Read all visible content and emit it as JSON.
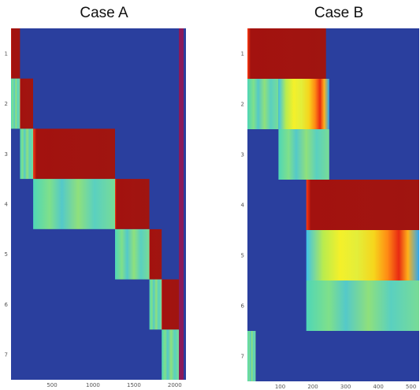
{
  "chart_data": [
    {
      "type": "heatmap",
      "title": "Case A",
      "x_ticks": [
        500,
        1000,
        1500,
        2000
      ],
      "xlim": [
        0,
        2050
      ],
      "y_ticks": [
        1,
        2,
        3,
        4,
        5,
        6,
        7
      ],
      "colormap": "jet",
      "background_color": "#2a3f9e",
      "blocks": [
        {
          "row": 1,
          "x_start": 0,
          "x_end": 110,
          "intensity": "high"
        },
        {
          "row": 2,
          "x_start": 0,
          "x_end": 110,
          "intensity": "medium"
        },
        {
          "row": 2,
          "x_start": 110,
          "x_end": 270,
          "intensity": "high"
        },
        {
          "row": 3,
          "x_start": 110,
          "x_end": 270,
          "intensity": "medium"
        },
        {
          "row": 3,
          "x_start": 270,
          "x_end": 1270,
          "intensity": "high"
        },
        {
          "row": 4,
          "x_start": 270,
          "x_end": 1270,
          "intensity": "medium"
        },
        {
          "row": 4,
          "x_start": 1270,
          "x_end": 1690,
          "intensity": "high"
        },
        {
          "row": 5,
          "x_start": 1270,
          "x_end": 1690,
          "intensity": "medium"
        },
        {
          "row": 5,
          "x_start": 1690,
          "x_end": 1840,
          "intensity": "high"
        },
        {
          "row": 6,
          "x_start": 1690,
          "x_end": 1840,
          "intensity": "medium"
        },
        {
          "row": 6,
          "x_start": 1840,
          "x_end": 2050,
          "intensity": "high"
        },
        {
          "row": 7,
          "x_start": 1840,
          "x_end": 2050,
          "intensity": "medium"
        }
      ]
    },
    {
      "type": "heatmap",
      "title": "Case B",
      "x_ticks": [
        100,
        200,
        300,
        400,
        500
      ],
      "xlim": [
        0,
        525
      ],
      "y_ticks": [
        1,
        2,
        3,
        4,
        5,
        6,
        7
      ],
      "colormap": "jet",
      "background_color": "#2a3f9e",
      "blocks": [
        {
          "row": 1,
          "x_start": 0,
          "x_end": 240,
          "intensity": "high"
        },
        {
          "row": 2,
          "x_start": 0,
          "x_end": 95,
          "intensity": "medium"
        },
        {
          "row": 2,
          "x_start": 95,
          "x_end": 250,
          "intensity": "mixed"
        },
        {
          "row": 3,
          "x_start": 95,
          "x_end": 250,
          "intensity": "medium"
        },
        {
          "row": 4,
          "x_start": 180,
          "x_end": 525,
          "intensity": "high"
        },
        {
          "row": 5,
          "x_start": 180,
          "x_end": 525,
          "intensity": "mixed"
        },
        {
          "row": 6,
          "x_start": 180,
          "x_end": 525,
          "intensity": "medium"
        },
        {
          "row": 7,
          "x_start": 0,
          "x_end": 25,
          "intensity": "medium"
        }
      ]
    }
  ]
}
